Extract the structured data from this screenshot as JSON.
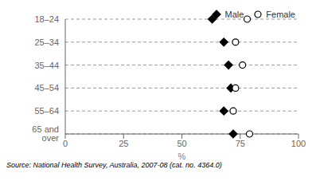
{
  "chart_data": {
    "type": "dot",
    "orientation": "horizontal",
    "categories": [
      "18–24",
      "25–34",
      "35–44",
      "45–54",
      "55–64",
      "65 and over"
    ],
    "series": [
      {
        "name": "Male",
        "color": "#000000",
        "marker": "diamond",
        "values": [
          63,
          68,
          70,
          71,
          68,
          72
        ]
      },
      {
        "name": "Female",
        "color": "#000000",
        "marker": "circle-open",
        "values": [
          78,
          73,
          76,
          73,
          72,
          79
        ]
      }
    ],
    "xlim": [
      0,
      100
    ],
    "xticks": [
      0,
      25,
      50,
      75,
      100
    ],
    "xlabel": "%",
    "grid": true,
    "legend": "top-right",
    "annotation": "Source: National Health Survey, Australia, 2007-08 (cat. no. 4364.0)"
  }
}
